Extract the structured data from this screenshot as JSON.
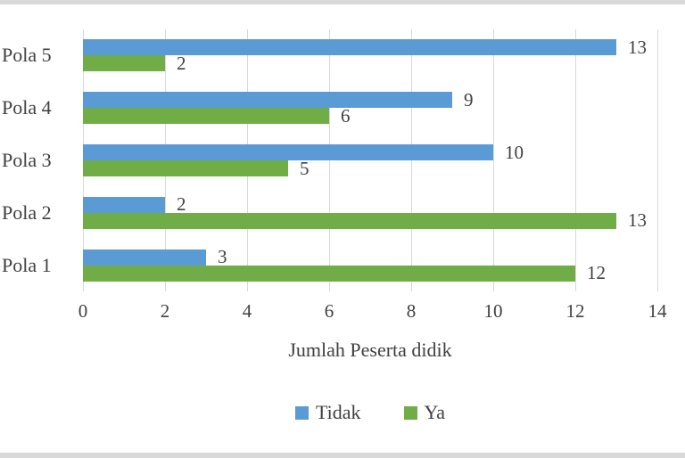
{
  "chart_data": {
    "type": "bar",
    "orientation": "horizontal",
    "categories": [
      "Pola 5",
      "Pola 4",
      "Pola 3",
      "Pola 2",
      "Pola 1"
    ],
    "series": [
      {
        "name": "Tidak",
        "color": "#5B9BD5",
        "values": [
          13,
          9,
          10,
          2,
          3
        ]
      },
      {
        "name": "Ya",
        "color": "#70AD47",
        "values": [
          2,
          6,
          5,
          13,
          12
        ]
      }
    ],
    "xlabel": "Jumlah Peserta didik",
    "xlim": [
      0,
      14
    ],
    "xticks": [
      0,
      2,
      4,
      6,
      8,
      10,
      12,
      14
    ],
    "grid": "vertical",
    "legend_position": "bottom",
    "data_labels": true,
    "colors": {
      "gridline": "#D9D9D9",
      "text": "#404040",
      "border_strip": "#D9D9D9",
      "background": "#FFFFFF"
    }
  }
}
